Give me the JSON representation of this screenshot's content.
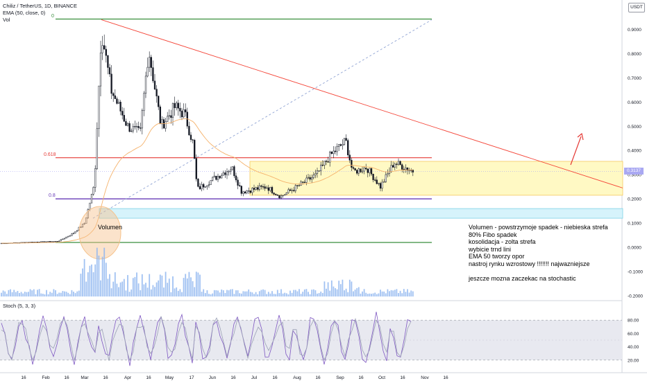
{
  "header": {
    "symbol": "Chiliz / TetherUS, 1D, BINANCE",
    "ema": "EMA (50, close, 0)",
    "vol": "Vol"
  },
  "currency_button": "USDT",
  "current_price": "0.3137",
  "fib_labels": {
    "f0": "0",
    "f618": "0.618",
    "f8": "0.8"
  },
  "volume_annotation": "Volumen",
  "notes": [
    "Volumen - powstrzymoje spadek - niebieska strefa",
    "80% Fibo spadek",
    "kosolidacja - zolta strefa",
    "wybicie trnd lini",
    "EMA 50 tworzy opor",
    "nastroj rynku wzrostowy !!!!!!! najwazniejsze",
    "",
    "jeszcze mozna zaczekac na stochastic"
  ],
  "stoch_label": "Stoch (5, 3, 3)",
  "colors": {
    "up": "#131722",
    "fib0": "#388e3c",
    "fib618": "#e53935",
    "fib8": "#673ab7",
    "trend": "#f44336",
    "consolidation": "#fff9c4",
    "volume_zone": "#d6f3fb",
    "ema": "#f5b26b",
    "volume_bar": "#90b7f0",
    "stoch_k": "#7e57c2",
    "stoch_d": "#9aa0b5",
    "circle": "#f6c28b"
  },
  "chart_data": [
    {
      "type": "candlestick",
      "title": "Chiliz / TetherUS, 1D, BINANCE",
      "price_axis_ticks": [
        "0.9000",
        "0.8000",
        "0.7000",
        "0.6000",
        "0.5000",
        "0.4000",
        "0.3000",
        "0.2000",
        "0.1000",
        "0.0000",
        "-0.1000",
        "-0.2000"
      ],
      "time_axis_ticks": [
        "16",
        "Feb",
        "16",
        "Mar",
        "16",
        "Apr",
        "16",
        "May",
        "17",
        "Jun",
        "16",
        "Jul",
        "16",
        "Aug",
        "16",
        "Sep",
        "16",
        "Oct",
        "16",
        "Nov",
        "16"
      ],
      "ylim": [
        -0.2,
        0.94
      ],
      "key_levels": {
        "fib_0": 0.02,
        "fib_0_618": 0.37,
        "fib_0_8": 0.2,
        "top": 0.94
      },
      "consolidation_zone": [
        0.215,
        0.355
      ],
      "volume_zone": [
        0.12,
        0.16
      ],
      "last_price": 0.3137,
      "price_path": [
        {
          "date": "2021-01-01",
          "close": 0.017
        },
        {
          "date": "2021-01-25",
          "close": 0.022
        },
        {
          "date": "2021-02-10",
          "close": 0.025
        },
        {
          "date": "2021-02-20",
          "close": 0.055
        },
        {
          "date": "2021-03-01",
          "close": 0.1
        },
        {
          "date": "2021-03-08",
          "close": 0.26
        },
        {
          "date": "2021-03-13",
          "close": 0.9
        },
        {
          "date": "2021-03-20",
          "close": 0.65
        },
        {
          "date": "2021-04-01",
          "close": 0.5
        },
        {
          "date": "2021-04-10",
          "close": 0.47
        },
        {
          "date": "2021-04-16",
          "close": 0.82
        },
        {
          "date": "2021-04-25",
          "close": 0.5
        },
        {
          "date": "2021-05-05",
          "close": 0.58
        },
        {
          "date": "2021-05-12",
          "close": 0.55
        },
        {
          "date": "2021-05-18",
          "close": 0.43
        },
        {
          "date": "2021-05-21",
          "close": 0.24
        },
        {
          "date": "2021-06-01",
          "close": 0.28
        },
        {
          "date": "2021-06-15",
          "close": 0.33
        },
        {
          "date": "2021-06-22",
          "close": 0.23
        },
        {
          "date": "2021-07-10",
          "close": 0.25
        },
        {
          "date": "2021-07-20",
          "close": 0.21
        },
        {
          "date": "2021-08-01",
          "close": 0.25
        },
        {
          "date": "2021-08-15",
          "close": 0.3
        },
        {
          "date": "2021-08-25",
          "close": 0.38
        },
        {
          "date": "2021-09-05",
          "close": 0.44
        },
        {
          "date": "2021-09-10",
          "close": 0.31
        },
        {
          "date": "2021-09-20",
          "close": 0.33
        },
        {
          "date": "2021-09-30",
          "close": 0.25
        },
        {
          "date": "2021-10-10",
          "close": 0.35
        },
        {
          "date": "2021-10-24",
          "close": 0.3137
        }
      ]
    },
    {
      "type": "line",
      "title": "Stoch (5, 3, 3)",
      "ticks": [
        "80.00",
        "60.00",
        "40.00",
        "20.00"
      ],
      "ylim": [
        0,
        100
      ],
      "series": [
        {
          "name": "%K",
          "values": [
            72,
            55,
            30,
            22,
            48,
            78,
            85,
            60,
            35,
            20,
            42,
            70,
            82,
            65,
            38,
            25,
            50,
            74,
            80,
            58,
            30,
            22,
            46,
            72,
            84,
            62,
            36,
            24
          ]
        },
        {
          "name": "%D",
          "values": [
            68,
            58,
            38,
            28,
            42,
            68,
            80,
            66,
            44,
            28,
            38,
            62,
            78,
            70,
            46,
            30,
            44,
            66,
            78,
            64,
            40,
            28,
            40,
            64,
            80,
            68,
            44,
            30
          ]
        }
      ]
    }
  ]
}
